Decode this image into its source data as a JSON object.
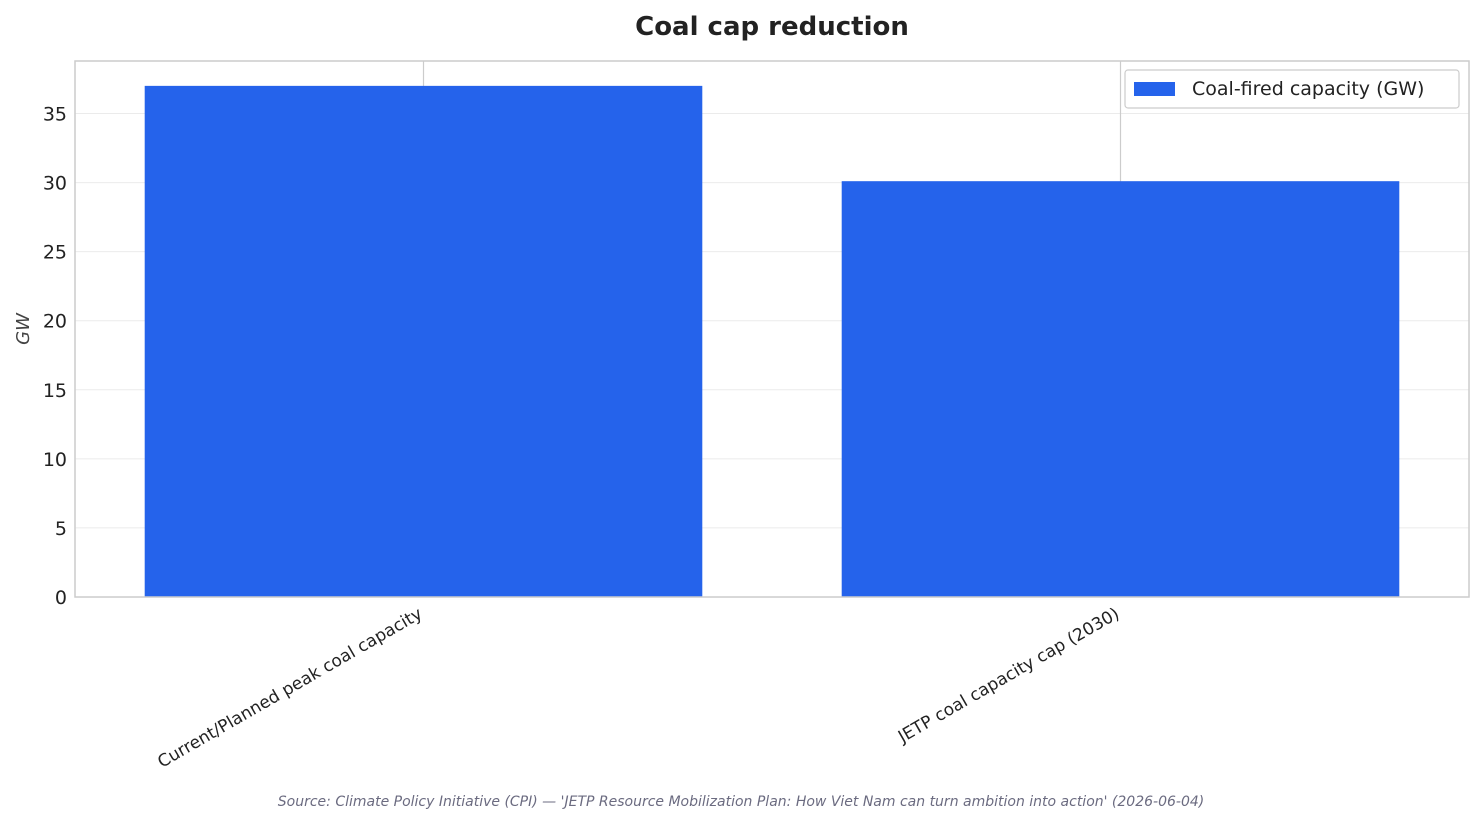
{
  "chart_data": {
    "type": "bar",
    "title": "Coal cap reduction",
    "categories": [
      "Current/Planned peak coal capacity",
      "JETP coal capacity cap (2030)"
    ],
    "series": [
      {
        "name": "Coal-fired capacity (GW)",
        "values": [
          37,
          30.1
        ],
        "color": "#2563eb"
      }
    ],
    "xlabel": "",
    "ylabel": "GW",
    "ylim": [
      0,
      38.8
    ],
    "yticks": [
      0,
      5,
      10,
      15,
      20,
      25,
      30,
      35
    ],
    "grid": true,
    "legend": "top-right",
    "source": "Source: Climate Policy Initiative (CPI) — 'JETP Resource Mobilization Plan: How Viet Nam can turn ambition into action' (2026-06-04)"
  }
}
